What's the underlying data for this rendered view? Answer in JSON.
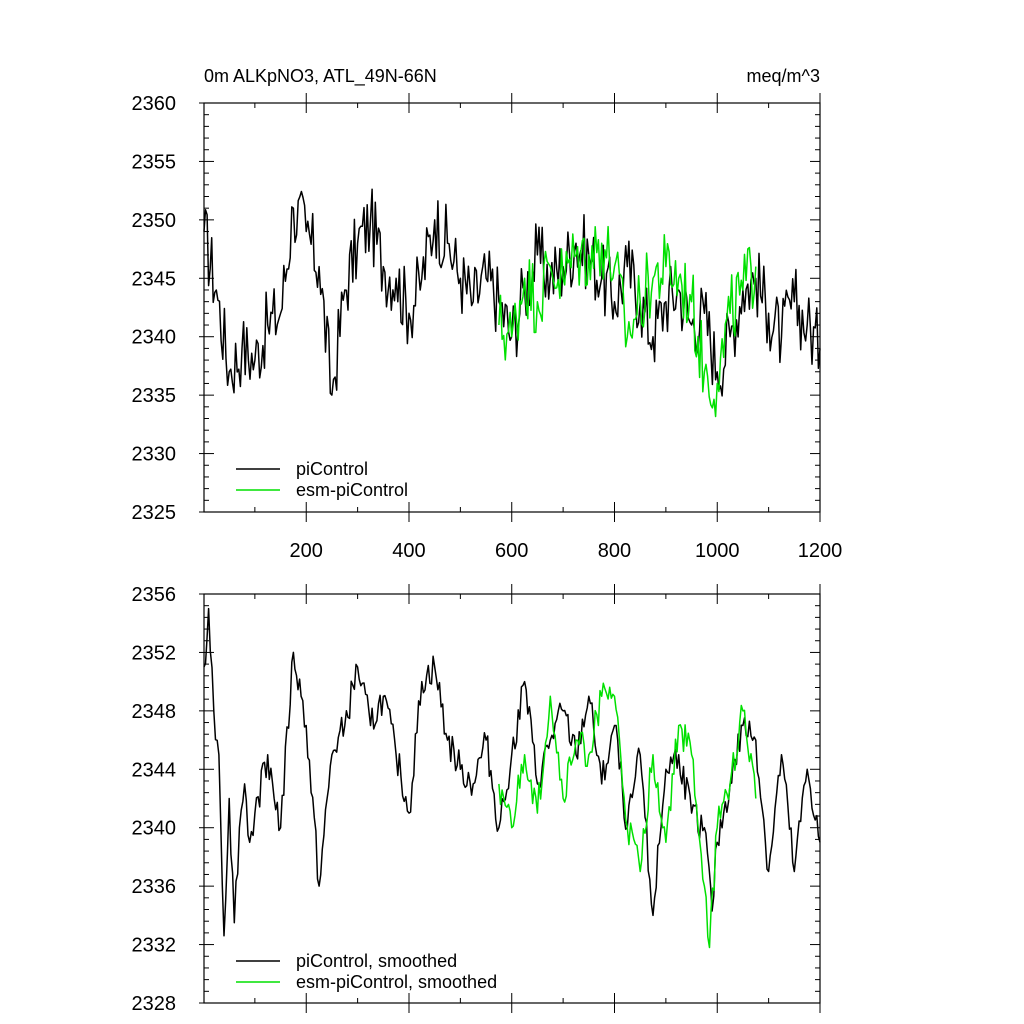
{
  "chart_data": [
    {
      "type": "line",
      "title": "0m ALKpNO3, ATL_49N-66N",
      "units": "meq/m^3",
      "xlabel": "",
      "ylabel": "",
      "xlim": [
        1,
        1200
      ],
      "ylim": [
        2325,
        2360
      ],
      "x_tick_labels": [
        "200",
        "400",
        "600",
        "800",
        "1000",
        "1200"
      ],
      "y_tick_labels": [
        "2325",
        "2330",
        "2335",
        "2340",
        "2345",
        "2350",
        "2355",
        "2360"
      ],
      "legend_position": "bottom-left",
      "series": [
        {
          "name": "piControl",
          "color": "#000000",
          "x": [
            1,
            25,
            50,
            75,
            100,
            125,
            150,
            175,
            200,
            225,
            250,
            275,
            300,
            325,
            350,
            375,
            400,
            425,
            450,
            475,
            500,
            525,
            550,
            575,
            600,
            625,
            650,
            675,
            700,
            725,
            750,
            775,
            800,
            825,
            850,
            875,
            900,
            925,
            950,
            975,
            1000,
            1025,
            1050,
            1075,
            1100,
            1125,
            1150,
            1175,
            1200
          ],
          "values": [
            2349,
            2344,
            2337,
            2339,
            2338,
            2341,
            2342,
            2351,
            2349,
            2346,
            2335,
            2344,
            2348,
            2350,
            2346,
            2345,
            2342,
            2345,
            2350,
            2348,
            2345,
            2343,
            2345,
            2343,
            2340,
            2344,
            2347,
            2345,
            2346,
            2348,
            2347,
            2345,
            2343,
            2346,
            2343,
            2340,
            2343,
            2344,
            2341,
            2342,
            2337,
            2340,
            2344,
            2345,
            2342,
            2340,
            2343,
            2341,
            2339
          ]
        },
        {
          "name": "esm-piControl",
          "color": "#00e000",
          "x": [
            575,
            600,
            625,
            650,
            675,
            700,
            725,
            750,
            775,
            800,
            825,
            850,
            875,
            900,
            925,
            950,
            975,
            1000,
            1025,
            1050,
            1075
          ],
          "values": [
            2341,
            2340,
            2345,
            2343,
            2346,
            2345,
            2347,
            2347,
            2348,
            2346,
            2340,
            2343,
            2345,
            2346,
            2345,
            2343,
            2337,
            2336,
            2342,
            2344,
            2346
          ]
        }
      ]
    },
    {
      "type": "line",
      "title": "",
      "xlabel": "",
      "ylabel": "",
      "xlim": [
        1,
        1200
      ],
      "ylim": [
        2328,
        2356
      ],
      "x_tick_labels": [],
      "y_tick_labels": [
        "2328",
        "2332",
        "2336",
        "2340",
        "2344",
        "2348",
        "2352",
        "2356"
      ],
      "legend_position": "bottom-left",
      "series": [
        {
          "name": "piControl, smoothed",
          "color": "#000000",
          "x": [
            1,
            10,
            20,
            30,
            40,
            50,
            60,
            70,
            80,
            90,
            100,
            125,
            150,
            175,
            190,
            200,
            225,
            250,
            275,
            300,
            325,
            350,
            375,
            400,
            425,
            450,
            475,
            500,
            525,
            550,
            575,
            600,
            625,
            650,
            675,
            700,
            725,
            750,
            775,
            800,
            825,
            850,
            875,
            900,
            925,
            950,
            975,
            990,
            1000,
            1025,
            1050,
            1075,
            1100,
            1125,
            1150,
            1175,
            1200
          ],
          "values": [
            2351,
            2355,
            2348,
            2345,
            2332.6,
            2342,
            2333.5,
            2340,
            2343,
            2339,
            2341,
            2345,
            2340,
            2352,
            2349,
            2347,
            2336,
            2345,
            2347,
            2351,
            2347,
            2349,
            2345,
            2341,
            2350,
            2351,
            2346,
            2344,
            2343,
            2346,
            2340,
            2345,
            2350,
            2343,
            2346,
            2348,
            2345,
            2349,
            2343,
            2347,
            2340,
            2345,
            2334,
            2344,
            2345,
            2341,
            2340,
            2334.3,
            2339,
            2343,
            2347,
            2346,
            2337,
            2345,
            2337,
            2344,
            2339
          ]
        },
        {
          "name": "esm-piControl, smoothed",
          "color": "#00e000",
          "x": [
            575,
            600,
            625,
            650,
            675,
            700,
            725,
            750,
            775,
            800,
            825,
            850,
            875,
            900,
            925,
            950,
            975,
            985,
            1000,
            1025,
            1050,
            1075
          ],
          "values": [
            2343,
            2340,
            2345,
            2341,
            2349,
            2342,
            2346,
            2345,
            2349,
            2349,
            2340,
            2337,
            2345,
            2339,
            2347,
            2345,
            2336,
            2331.8,
            2340,
            2343,
            2348,
            2342
          ]
        }
      ]
    }
  ]
}
